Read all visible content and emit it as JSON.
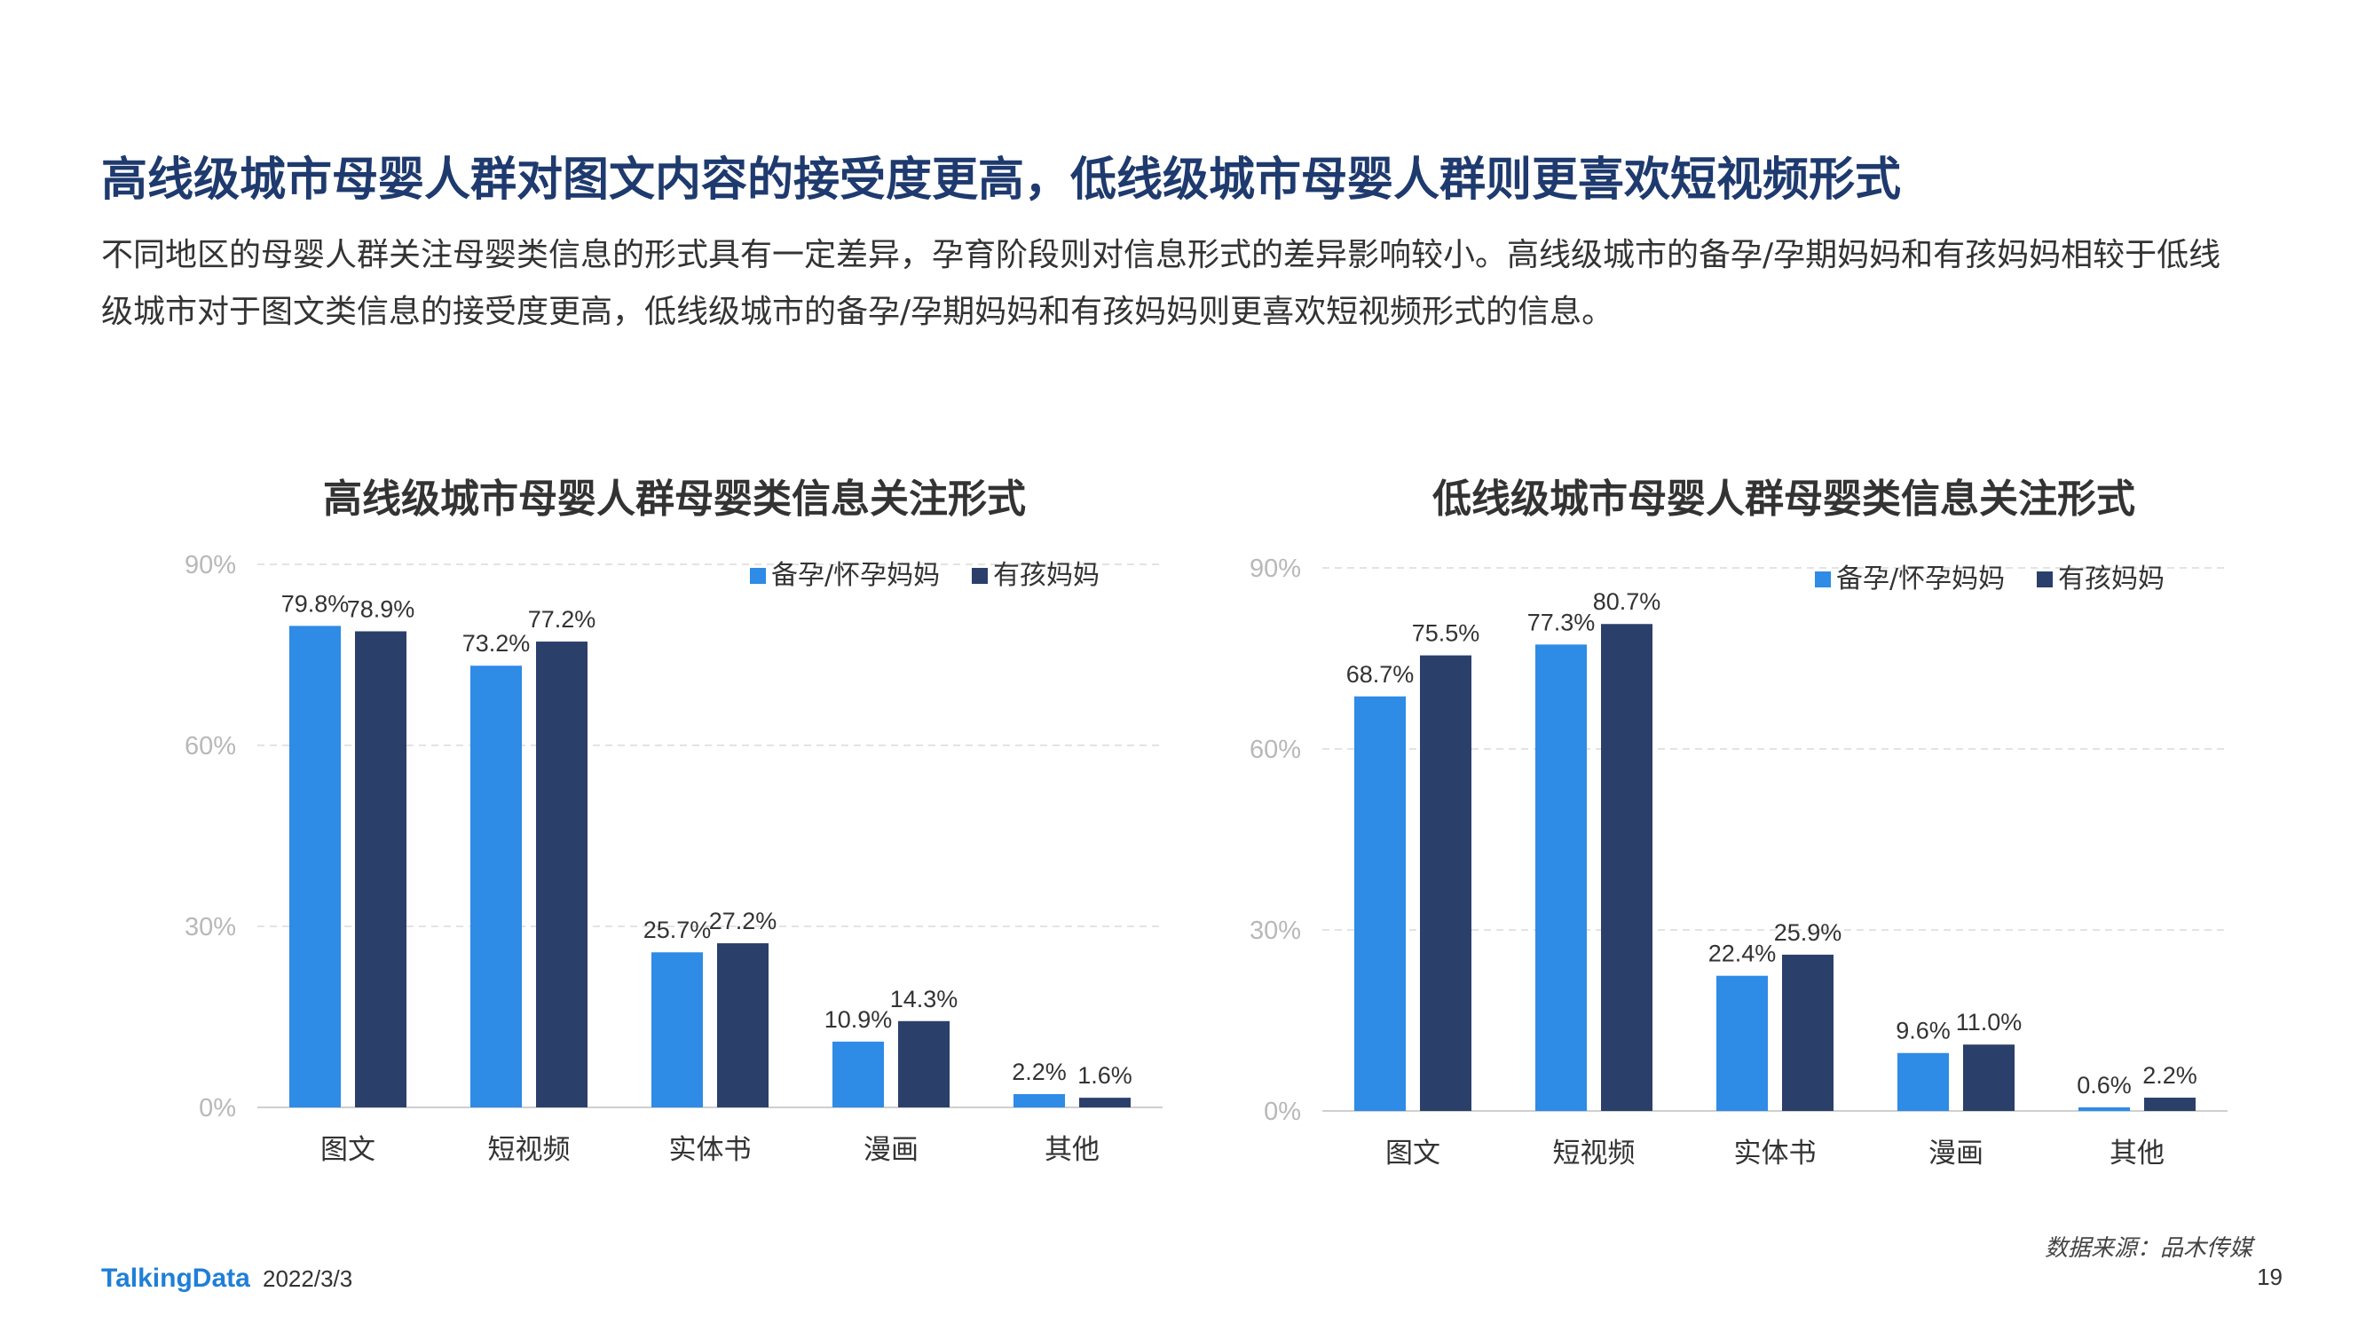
{
  "page": {
    "headline": "高线级城市母婴人群对图文内容的接受度更高，低线级城市母婴人群则更喜欢短视频形式",
    "intro_line1": "不同地区的母婴人群关注母婴类信息的形式具有一定差异，孕育阶段则对信息形式的差异影响较小。高线级城市的备孕/孕期妈妈和有孩妈妈相较于低线",
    "intro_line2": "级城市对于图文类信息的接受度更高，低线级城市的备孕/孕期妈妈和有孩妈妈则更喜欢短视频形式的信息。",
    "source": "数据来源：品木传媒",
    "logo": "TalkingData",
    "date": "2022/3/3",
    "page_number": "19"
  },
  "chart_data": [
    {
      "type": "bar",
      "title": "高线级城市母婴人群母婴类信息关注形式",
      "categories": [
        "图文",
        "短视频",
        "实体书",
        "漫画",
        "其他"
      ],
      "series": [
        {
          "name": "备孕/怀孕妈妈",
          "values": [
            79.8,
            73.2,
            25.7,
            10.9,
            2.2
          ],
          "labels": [
            "79.8%",
            "73.2%",
            "25.7%",
            "10.9%",
            "2.2%"
          ],
          "color": "#2e8be6"
        },
        {
          "name": "有孩妈妈",
          "values": [
            78.9,
            77.2,
            27.2,
            14.3,
            1.6
          ],
          "labels": [
            "78.9%",
            "77.2%",
            "27.2%",
            "14.3%",
            "1.6%"
          ],
          "color": "#2b3f6b"
        }
      ],
      "ylim": [
        0,
        90
      ],
      "yticks": [
        "0%",
        "30%",
        "60%",
        "90%"
      ],
      "grid": true,
      "legend": "top-right"
    },
    {
      "type": "bar",
      "title": "低线级城市母婴人群母婴类信息关注形式",
      "categories": [
        "图文",
        "短视频",
        "实体书",
        "漫画",
        "其他"
      ],
      "series": [
        {
          "name": "备孕/怀孕妈妈",
          "values": [
            68.7,
            77.3,
            22.4,
            9.6,
            0.6
          ],
          "labels": [
            "68.7%",
            "77.3%",
            "22.4%",
            "9.6%",
            "0.6%"
          ],
          "color": "#2e8be6"
        },
        {
          "name": "有孩妈妈",
          "values": [
            75.5,
            80.7,
            25.9,
            11.0,
            2.2
          ],
          "labels": [
            "75.5%",
            "80.7%",
            "25.9%",
            "11.0%",
            "2.2%"
          ],
          "color": "#2b3f6b"
        }
      ],
      "ylim": [
        0,
        90
      ],
      "yticks": [
        "0%",
        "30%",
        "60%",
        "90%"
      ],
      "grid": true,
      "legend": "top-right"
    }
  ]
}
